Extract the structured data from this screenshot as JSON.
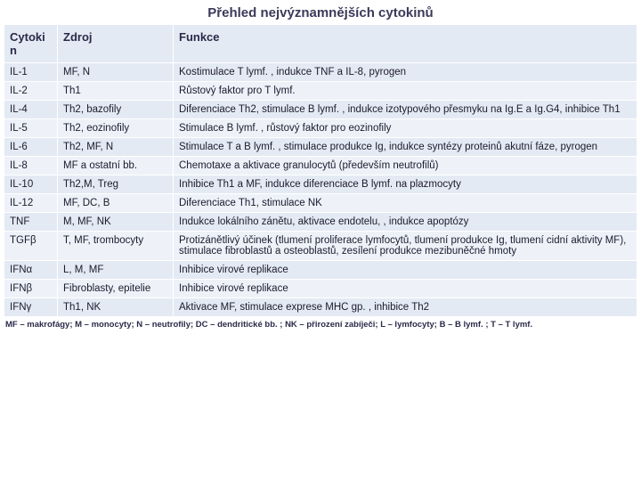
{
  "title": "Přehled nejvýznamnějších cytokinů",
  "columns": [
    "Cytokin",
    "Zdroj",
    "Funkce"
  ],
  "rows": [
    [
      "IL-1",
      "MF, N",
      "Kostimulace T lymf. , indukce TNF a IL-8, pyrogen"
    ],
    [
      "IL-2",
      "Th1",
      "Růstový faktor pro T lymf."
    ],
    [
      "IL-4",
      "Th2, bazofily",
      "Diferenciace Th2, stimulace B lymf. , indukce izotypového přesmyku na Ig.E a Ig.G4, inhibice Th1"
    ],
    [
      "IL-5",
      "Th2, eozinofily",
      "Stimulace B lymf. , růstový faktor pro eozinofily"
    ],
    [
      "IL-6",
      "Th2, MF, N",
      "Stimulace T a B lymf. , stimulace produkce Ig, indukce syntézy proteinů akutní fáze, pyrogen"
    ],
    [
      "IL-8",
      "MF a ostatní bb.",
      "Chemotaxe a aktivace granulocytů (především neutrofilů)"
    ],
    [
      "IL-10",
      "Th2,M, Treg",
      "Inhibice Th1 a MF, indukce diferenciace B lymf. na plazmocyty"
    ],
    [
      "IL-12",
      "MF, DC, B",
      "Diferenciace Th1, stimulace NK"
    ],
    [
      "TNF",
      "M, MF, NK",
      "Indukce lokálního zánětu, aktivace endotelu, , indukce apoptózy"
    ],
    [
      "TGFβ",
      "T, MF, trombocyty",
      "Protizánětlivý účinek (tlumení proliferace lymfocytů, tlumení produkce Ig, tlumení cidní aktivity MF), stimulace fibroblastů a osteoblastů, zesílení produkce mezibuněčné hmoty"
    ],
    [
      "IFNα",
      "L, M, MF",
      "Inhibice virové replikace"
    ],
    [
      "IFNβ",
      "Fibroblasty, epitelie",
      "Inhibice virové replikace"
    ],
    [
      "IFNγ",
      "Th1, NK",
      "Aktivace MF, stimulace exprese MHC gp. , inhibice Th2"
    ]
  ],
  "footnote": "MF – makrofágy; M – monocyty; N – neutrofily; DC – dendritické bb. ; NK – přirození zabíječi; L – lymfocyty; B – B lymf. ; T – T lymf."
}
